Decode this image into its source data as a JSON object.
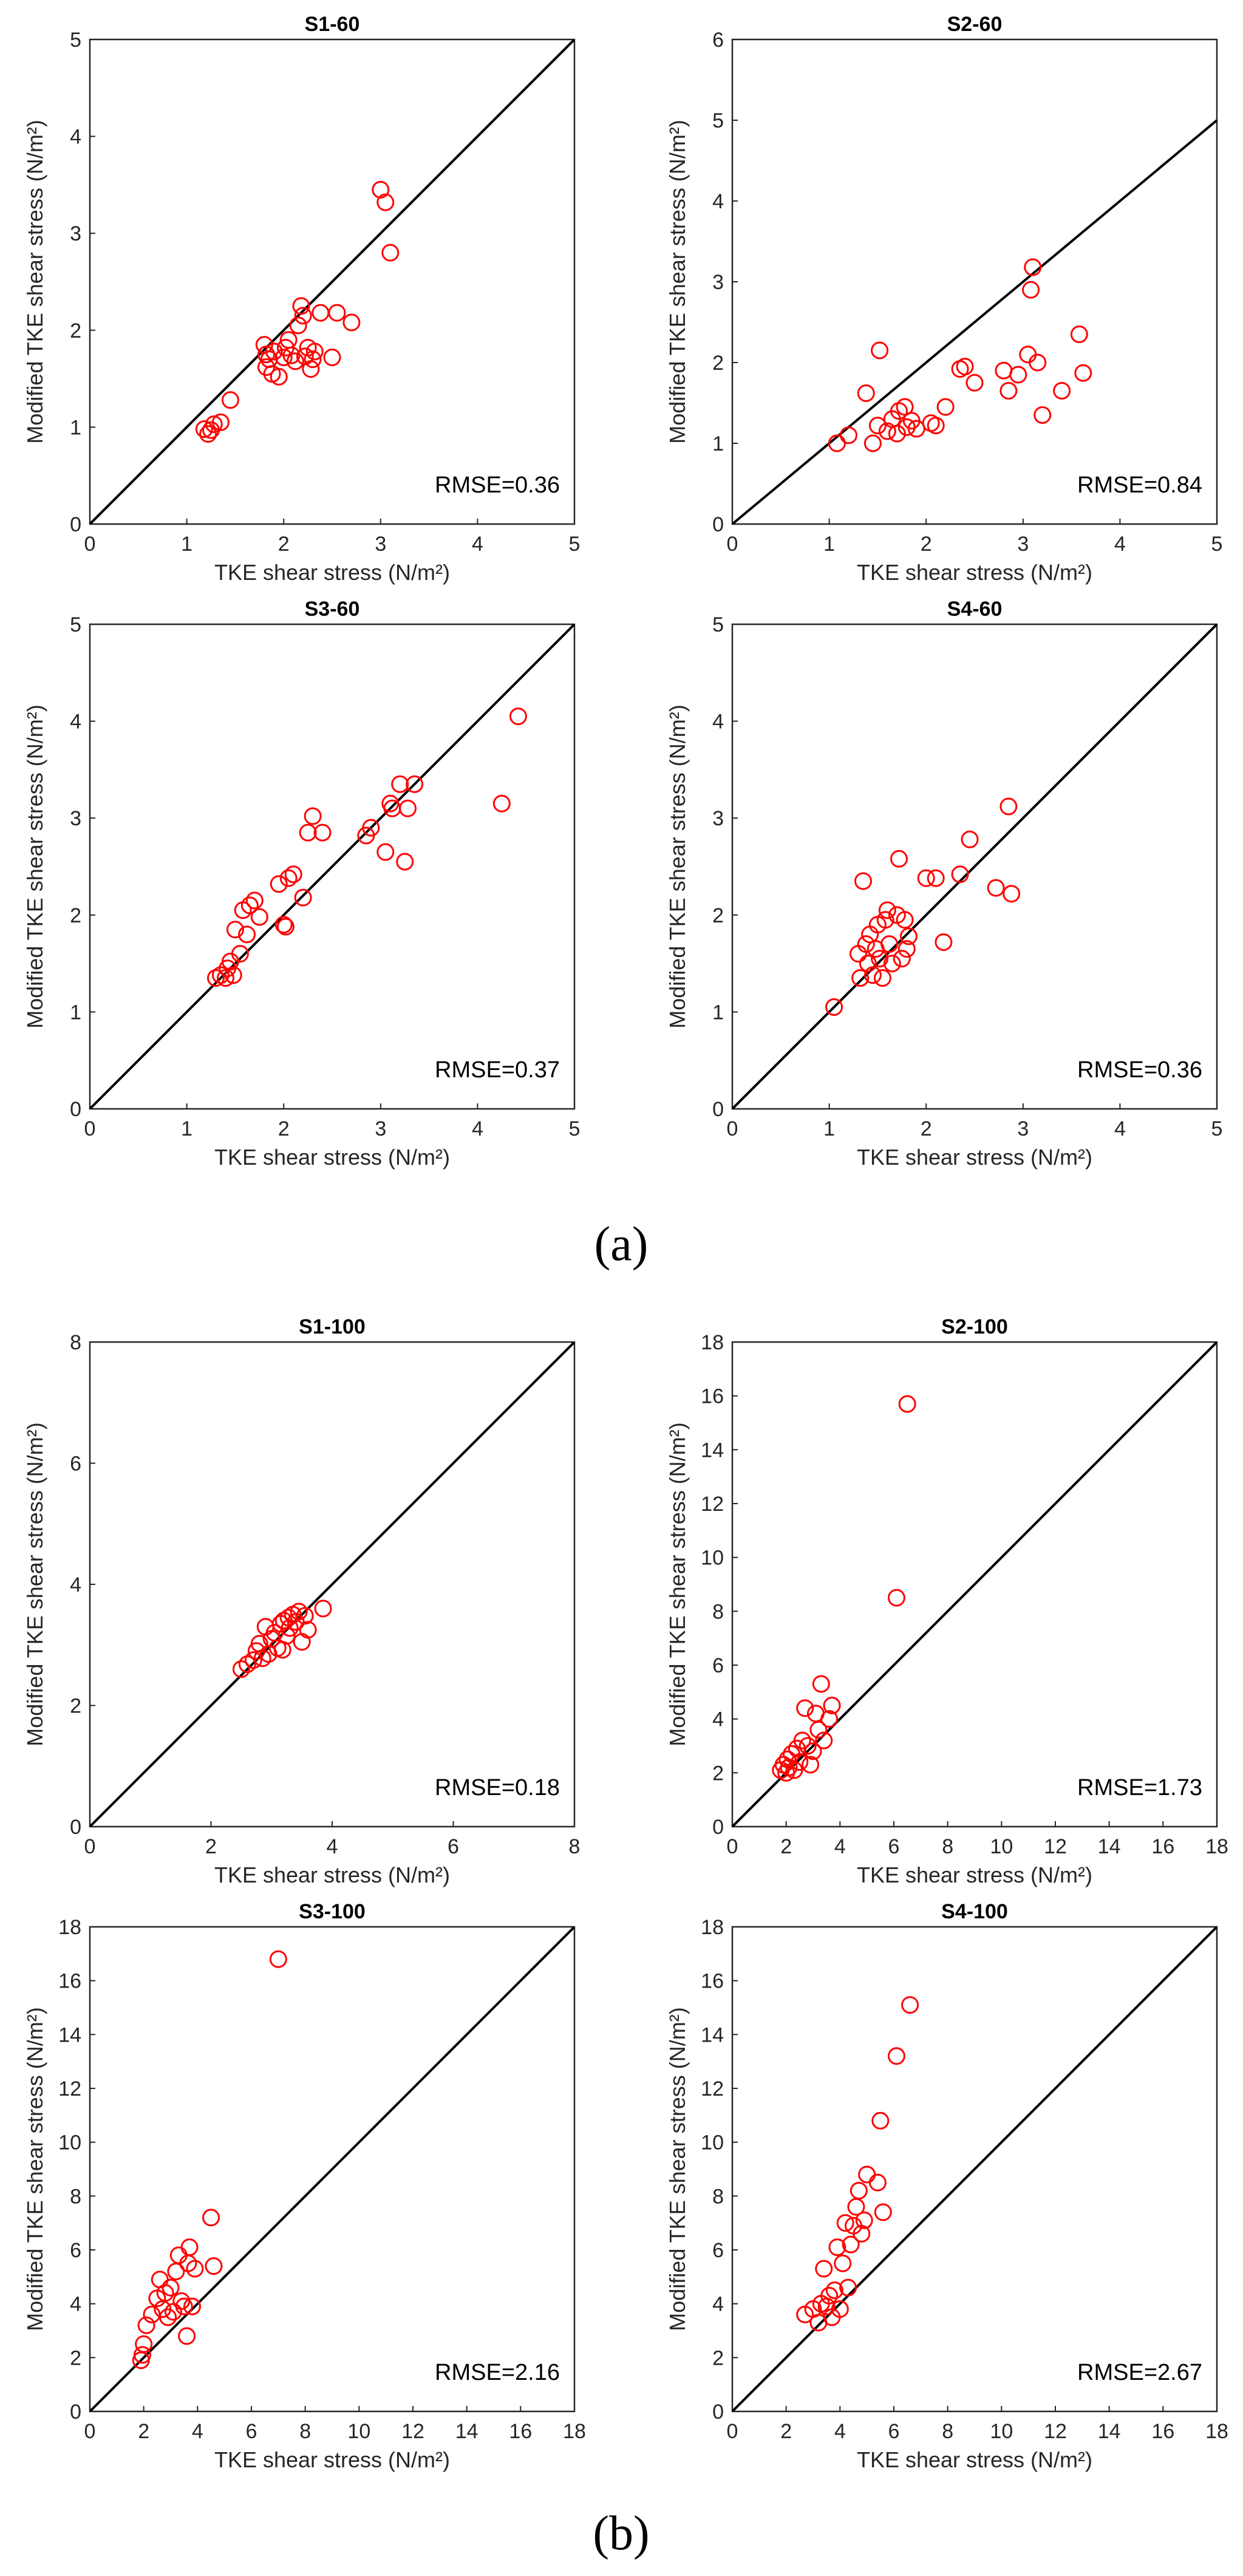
{
  "figure": {
    "caption_a": "(a)",
    "caption_b": "(b)"
  },
  "chart_data": [
    {
      "type": "scatter",
      "title": "S1-60",
      "xlabel": "TKE shear stress (N/m²)",
      "ylabel": "Modified TKE shear stress (N/m²)",
      "xlim": [
        0,
        5
      ],
      "ylim": [
        0,
        5
      ],
      "xticks": [
        0,
        1,
        2,
        3,
        4,
        5
      ],
      "yticks": [
        0,
        1,
        2,
        3,
        4,
        5
      ],
      "annotation": "RMSE=0.36",
      "reference_line": "y = x",
      "marker_color": "#ff0000",
      "line_color": "#000000",
      "points": [
        [
          1.18,
          0.98
        ],
        [
          1.22,
          0.93
        ],
        [
          1.25,
          0.97
        ],
        [
          1.28,
          1.03
        ],
        [
          1.35,
          1.05
        ],
        [
          1.45,
          1.28
        ],
        [
          1.8,
          1.85
        ],
        [
          1.82,
          1.75
        ],
        [
          1.82,
          1.62
        ],
        [
          1.85,
          1.7
        ],
        [
          1.88,
          1.55
        ],
        [
          1.9,
          1.78
        ],
        [
          1.95,
          1.52
        ],
        [
          2.0,
          1.72
        ],
        [
          2.02,
          1.82
        ],
        [
          2.05,
          1.9
        ],
        [
          2.08,
          1.74
        ],
        [
          2.12,
          1.68
        ],
        [
          2.15,
          2.05
        ],
        [
          2.18,
          2.25
        ],
        [
          2.2,
          2.15
        ],
        [
          2.22,
          1.73
        ],
        [
          2.25,
          1.82
        ],
        [
          2.28,
          1.6
        ],
        [
          2.3,
          1.7
        ],
        [
          2.32,
          1.78
        ],
        [
          2.38,
          2.18
        ],
        [
          2.5,
          1.72
        ],
        [
          2.55,
          2.18
        ],
        [
          2.7,
          2.08
        ],
        [
          3.0,
          3.45
        ],
        [
          3.05,
          3.32
        ],
        [
          3.1,
          2.8
        ]
      ]
    },
    {
      "type": "scatter",
      "title": "S2-60",
      "xlabel": "TKE shear stress (N/m²)",
      "ylabel": "Modified TKE shear stress (N/m²)",
      "xlim": [
        0,
        5
      ],
      "ylim": [
        0,
        6
      ],
      "xticks": [
        0,
        1,
        2,
        3,
        4,
        5
      ],
      "yticks": [
        0,
        1,
        2,
        3,
        4,
        5,
        6
      ],
      "annotation": "RMSE=0.84",
      "reference_line": "y = x",
      "marker_color": "#ff0000",
      "line_color": "#000000",
      "points": [
        [
          1.08,
          1.0
        ],
        [
          1.2,
          1.1
        ],
        [
          1.38,
          1.62
        ],
        [
          1.45,
          1.0
        ],
        [
          1.5,
          1.22
        ],
        [
          1.52,
          2.15
        ],
        [
          1.6,
          1.15
        ],
        [
          1.65,
          1.3
        ],
        [
          1.7,
          1.12
        ],
        [
          1.72,
          1.4
        ],
        [
          1.78,
          1.45
        ],
        [
          1.8,
          1.2
        ],
        [
          1.85,
          1.28
        ],
        [
          1.9,
          1.18
        ],
        [
          2.05,
          1.25
        ],
        [
          2.1,
          1.22
        ],
        [
          2.2,
          1.45
        ],
        [
          2.35,
          1.92
        ],
        [
          2.4,
          1.95
        ],
        [
          2.5,
          1.75
        ],
        [
          2.8,
          1.9
        ],
        [
          2.85,
          1.65
        ],
        [
          2.95,
          1.85
        ],
        [
          3.05,
          2.1
        ],
        [
          3.08,
          2.9
        ],
        [
          3.1,
          3.18
        ],
        [
          3.15,
          2.0
        ],
        [
          3.2,
          1.35
        ],
        [
          3.4,
          1.65
        ],
        [
          3.58,
          2.35
        ],
        [
          3.62,
          1.87
        ]
      ]
    },
    {
      "type": "scatter",
      "title": "S3-60",
      "xlabel": "TKE shear stress (N/m²)",
      "ylabel": "Modified TKE shear stress (N/m²)",
      "xlim": [
        0,
        5
      ],
      "ylim": [
        0,
        5
      ],
      "xticks": [
        0,
        1,
        2,
        3,
        4,
        5
      ],
      "yticks": [
        0,
        1,
        2,
        3,
        4,
        5
      ],
      "annotation": "RMSE=0.37",
      "reference_line": "y = x",
      "marker_color": "#ff0000",
      "line_color": "#000000",
      "points": [
        [
          1.3,
          1.35
        ],
        [
          1.35,
          1.38
        ],
        [
          1.4,
          1.35
        ],
        [
          1.42,
          1.45
        ],
        [
          1.45,
          1.52
        ],
        [
          1.48,
          1.38
        ],
        [
          1.5,
          1.85
        ],
        [
          1.55,
          1.6
        ],
        [
          1.58,
          2.05
        ],
        [
          1.62,
          1.8
        ],
        [
          1.65,
          2.1
        ],
        [
          1.7,
          2.15
        ],
        [
          1.75,
          1.98
        ],
        [
          1.95,
          2.32
        ],
        [
          2.0,
          1.9
        ],
        [
          2.02,
          1.88
        ],
        [
          2.05,
          2.38
        ],
        [
          2.1,
          2.42
        ],
        [
          2.2,
          2.18
        ],
        [
          2.25,
          2.85
        ],
        [
          2.3,
          3.02
        ],
        [
          2.4,
          2.85
        ],
        [
          2.85,
          2.82
        ],
        [
          2.9,
          2.9
        ],
        [
          3.05,
          2.65
        ],
        [
          3.1,
          3.15
        ],
        [
          3.12,
          3.1
        ],
        [
          3.2,
          3.35
        ],
        [
          3.25,
          2.55
        ],
        [
          3.28,
          3.1
        ],
        [
          3.35,
          3.35
        ],
        [
          4.25,
          3.15
        ],
        [
          4.42,
          4.05
        ]
      ]
    },
    {
      "type": "scatter",
      "title": "S4-60",
      "xlabel": "TKE shear stress (N/m²)",
      "ylabel": "Modified TKE shear stress (N/m²)",
      "xlim": [
        0,
        5
      ],
      "ylim": [
        0,
        5
      ],
      "xticks": [
        0,
        1,
        2,
        3,
        4,
        5
      ],
      "yticks": [
        0,
        1,
        2,
        3,
        4,
        5
      ],
      "annotation": "RMSE=0.36",
      "reference_line": "y = x",
      "marker_color": "#ff0000",
      "line_color": "#000000",
      "points": [
        [
          1.05,
          1.05
        ],
        [
          1.3,
          1.6
        ],
        [
          1.32,
          1.35
        ],
        [
          1.35,
          2.35
        ],
        [
          1.38,
          1.7
        ],
        [
          1.4,
          1.5
        ],
        [
          1.42,
          1.8
        ],
        [
          1.45,
          1.38
        ],
        [
          1.48,
          1.65
        ],
        [
          1.5,
          1.9
        ],
        [
          1.52,
          1.55
        ],
        [
          1.55,
          1.35
        ],
        [
          1.58,
          1.95
        ],
        [
          1.6,
          2.05
        ],
        [
          1.62,
          1.7
        ],
        [
          1.65,
          1.5
        ],
        [
          1.7,
          2.0
        ],
        [
          1.72,
          2.58
        ],
        [
          1.75,
          1.55
        ],
        [
          1.78,
          1.95
        ],
        [
          1.8,
          1.65
        ],
        [
          1.82,
          1.78
        ],
        [
          2.0,
          2.38
        ],
        [
          2.1,
          2.38
        ],
        [
          2.18,
          1.72
        ],
        [
          2.35,
          2.42
        ],
        [
          2.45,
          2.78
        ],
        [
          2.72,
          2.28
        ],
        [
          2.85,
          3.12
        ],
        [
          2.88,
          2.22
        ]
      ]
    },
    {
      "type": "scatter",
      "title": "S1-100",
      "xlabel": "TKE shear stress (N/m²)",
      "ylabel": "Modified TKE shear stress (N/m²)",
      "xlim": [
        0,
        8
      ],
      "ylim": [
        0,
        8
      ],
      "xticks": [
        0,
        2,
        4,
        6,
        8
      ],
      "yticks": [
        0,
        2,
        4,
        6,
        8
      ],
      "annotation": "RMSE=0.18",
      "reference_line": "y = x",
      "marker_color": "#ff0000",
      "line_color": "#000000",
      "points": [
        [
          2.5,
          2.6
        ],
        [
          2.6,
          2.68
        ],
        [
          2.7,
          2.75
        ],
        [
          2.75,
          2.9
        ],
        [
          2.8,
          3.02
        ],
        [
          2.85,
          2.78
        ],
        [
          2.9,
          3.3
        ],
        [
          2.95,
          2.85
        ],
        [
          3.0,
          3.1
        ],
        [
          3.05,
          3.2
        ],
        [
          3.1,
          2.95
        ],
        [
          3.15,
          3.35
        ],
        [
          3.18,
          2.92
        ],
        [
          3.2,
          3.4
        ],
        [
          3.25,
          3.15
        ],
        [
          3.28,
          3.45
        ],
        [
          3.3,
          3.28
        ],
        [
          3.35,
          3.5
        ],
        [
          3.4,
          3.38
        ],
        [
          3.45,
          3.55
        ],
        [
          3.5,
          3.05
        ],
        [
          3.55,
          3.48
        ],
        [
          3.6,
          3.25
        ],
        [
          3.85,
          3.6
        ]
      ]
    },
    {
      "type": "scatter",
      "title": "S2-100",
      "xlabel": "TKE shear stress (N/m²)",
      "ylabel": "Modified TKE shear stress (N/m²)",
      "xlim": [
        0,
        18
      ],
      "ylim": [
        0,
        18
      ],
      "xticks": [
        0,
        2,
        4,
        6,
        8,
        10,
        12,
        14,
        16,
        18
      ],
      "yticks": [
        0,
        2,
        4,
        6,
        8,
        10,
        12,
        14,
        16,
        18
      ],
      "annotation": "RMSE=1.73",
      "reference_line": "y = x",
      "marker_color": "#ff0000",
      "line_color": "#000000",
      "points": [
        [
          1.8,
          2.1
        ],
        [
          1.9,
          2.3
        ],
        [
          2.0,
          2.0
        ],
        [
          2.05,
          2.5
        ],
        [
          2.1,
          2.2
        ],
        [
          2.2,
          2.7
        ],
        [
          2.3,
          2.1
        ],
        [
          2.4,
          2.9
        ],
        [
          2.5,
          2.4
        ],
        [
          2.6,
          3.2
        ],
        [
          2.7,
          4.4
        ],
        [
          2.8,
          3.0
        ],
        [
          2.9,
          2.3
        ],
        [
          3.0,
          2.8
        ],
        [
          3.1,
          4.2
        ],
        [
          3.2,
          3.6
        ],
        [
          3.3,
          5.3
        ],
        [
          3.4,
          3.2
        ],
        [
          3.6,
          4.0
        ],
        [
          3.7,
          4.5
        ],
        [
          6.1,
          8.5
        ],
        [
          6.5,
          15.7
        ]
      ]
    },
    {
      "type": "scatter",
      "title": "S3-100",
      "xlabel": "TKE shear stress (N/m²)",
      "ylabel": "Modified TKE shear stress (N/m²)",
      "xlim": [
        0,
        18
      ],
      "ylim": [
        0,
        18
      ],
      "xticks": [
        0,
        2,
        4,
        6,
        8,
        10,
        12,
        14,
        16,
        18
      ],
      "yticks": [
        0,
        2,
        4,
        6,
        8,
        10,
        12,
        14,
        16,
        18
      ],
      "annotation": "RMSE=2.16",
      "reference_line": "y = x",
      "marker_color": "#ff0000",
      "line_color": "#000000",
      "points": [
        [
          1.9,
          1.9
        ],
        [
          1.95,
          2.1
        ],
        [
          2.0,
          2.5
        ],
        [
          2.1,
          3.2
        ],
        [
          2.3,
          3.6
        ],
        [
          2.5,
          4.2
        ],
        [
          2.6,
          4.9
        ],
        [
          2.7,
          3.8
        ],
        [
          2.8,
          4.4
        ],
        [
          2.9,
          3.5
        ],
        [
          3.0,
          4.6
        ],
        [
          3.1,
          3.7
        ],
        [
          3.2,
          5.2
        ],
        [
          3.3,
          5.8
        ],
        [
          3.4,
          4.1
        ],
        [
          3.5,
          3.9
        ],
        [
          3.6,
          2.8
        ],
        [
          3.65,
          5.5
        ],
        [
          3.7,
          6.1
        ],
        [
          3.8,
          3.9
        ],
        [
          3.9,
          5.3
        ],
        [
          4.5,
          7.2
        ],
        [
          4.6,
          5.4
        ],
        [
          7.0,
          16.8
        ]
      ]
    },
    {
      "type": "scatter",
      "title": "S4-100",
      "xlabel": "TKE shear stress (N/m²)",
      "ylabel": "Modified TKE shear stress (N/m²)",
      "xlim": [
        0,
        18
      ],
      "ylim": [
        0,
        18
      ],
      "xticks": [
        0,
        2,
        4,
        6,
        8,
        10,
        12,
        14,
        16,
        18
      ],
      "yticks": [
        0,
        2,
        4,
        6,
        8,
        10,
        12,
        14,
        16,
        18
      ],
      "annotation": "RMSE=2.67",
      "reference_line": "y = x",
      "marker_color": "#ff0000",
      "line_color": "#000000",
      "points": [
        [
          2.7,
          3.6
        ],
        [
          3.0,
          3.8
        ],
        [
          3.2,
          3.3
        ],
        [
          3.3,
          4.0
        ],
        [
          3.4,
          5.3
        ],
        [
          3.5,
          3.9
        ],
        [
          3.6,
          4.3
        ],
        [
          3.7,
          3.5
        ],
        [
          3.8,
          4.5
        ],
        [
          3.9,
          6.1
        ],
        [
          4.0,
          3.8
        ],
        [
          4.1,
          5.5
        ],
        [
          4.2,
          7.0
        ],
        [
          4.3,
          4.6
        ],
        [
          4.4,
          6.2
        ],
        [
          4.5,
          6.9
        ],
        [
          4.6,
          7.6
        ],
        [
          4.7,
          8.2
        ],
        [
          4.8,
          6.6
        ],
        [
          4.9,
          7.1
        ],
        [
          5.0,
          8.8
        ],
        [
          5.4,
          8.5
        ],
        [
          5.5,
          10.8
        ],
        [
          5.6,
          7.4
        ],
        [
          6.1,
          13.2
        ],
        [
          6.6,
          15.1
        ]
      ]
    }
  ]
}
